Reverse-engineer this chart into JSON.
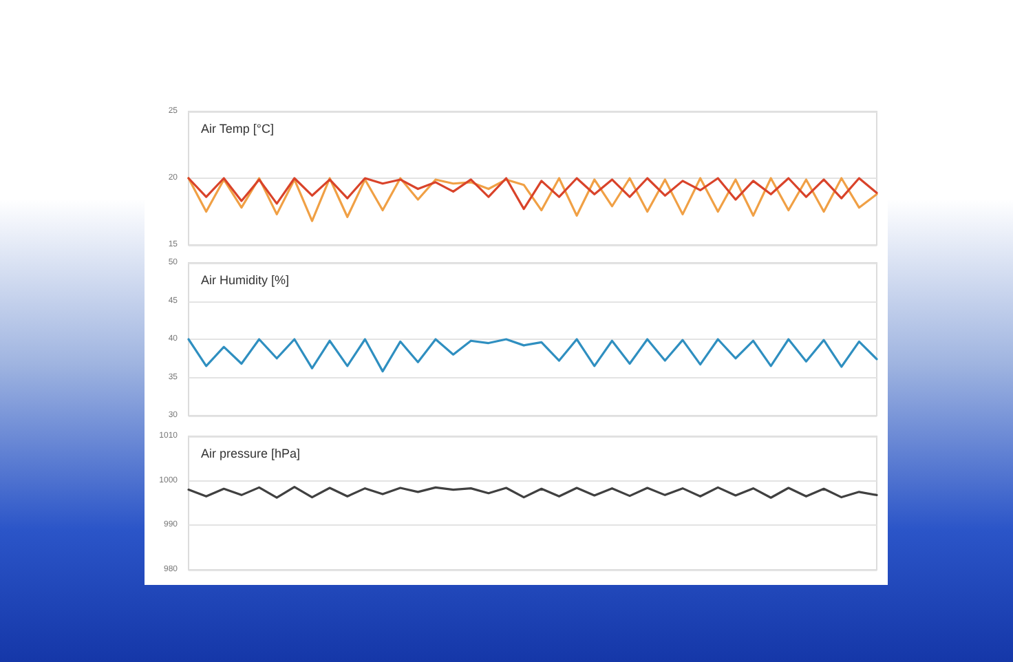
{
  "chart_data": [
    {
      "type": "line",
      "title": "Air Temp [°C]",
      "categories": [
        null,
        null,
        null,
        null,
        null,
        null,
        null,
        null,
        null,
        null,
        null,
        null,
        null,
        null,
        null,
        null,
        null,
        null,
        null,
        null,
        null,
        null,
        null,
        null,
        null,
        null,
        null,
        null,
        null,
        null,
        null,
        null,
        null,
        null,
        null,
        null,
        null,
        null,
        null,
        null
      ],
      "series": [
        {
          "color": "#f0a045",
          "values": [
            20,
            17.5,
            19.9,
            17.8,
            20,
            17.3,
            19.9,
            16.8,
            20,
            17.1,
            19.9,
            17.6,
            20,
            18.4,
            19.9,
            19.6,
            19.7,
            19.2,
            19.9,
            19.5,
            17.6,
            20,
            17.2,
            19.9,
            17.9,
            20,
            17.5,
            19.9,
            17.3,
            20,
            17.5,
            19.9,
            17.2,
            20,
            17.6,
            19.9,
            17.5,
            20,
            17.8,
            18.8
          ]
        },
        {
          "color": "#d9432a",
          "values": [
            20,
            18.6,
            20,
            18.3,
            19.9,
            18.1,
            20,
            18.7,
            19.9,
            18.5,
            20,
            19.6,
            19.9,
            19.2,
            19.7,
            19.0,
            19.9,
            18.6,
            20,
            17.7,
            19.8,
            18.6,
            20,
            18.8,
            19.9,
            18.6,
            20,
            18.7,
            19.8,
            19.1,
            20,
            18.4,
            19.8,
            18.8,
            20,
            18.6,
            19.9,
            18.5,
            20,
            18.9
          ]
        }
      ],
      "ylim": [
        15,
        25
      ],
      "yticks": [
        15,
        20,
        25
      ],
      "grid": "y",
      "marker": "none",
      "line_style": "solid"
    },
    {
      "type": "line",
      "title": "Air Humidity [%]",
      "categories": [
        null,
        null,
        null,
        null,
        null,
        null,
        null,
        null,
        null,
        null,
        null,
        null,
        null,
        null,
        null,
        null,
        null,
        null,
        null,
        null,
        null,
        null,
        null,
        null,
        null,
        null,
        null,
        null,
        null,
        null,
        null,
        null,
        null,
        null,
        null,
        null,
        null,
        null,
        null,
        null
      ],
      "series": [
        {
          "color": "#2f8fc0",
          "values": [
            40,
            36.5,
            39,
            36.8,
            40,
            37.5,
            40,
            36.2,
            39.8,
            36.5,
            40,
            35.8,
            39.7,
            37,
            40,
            38,
            39.8,
            39.5,
            40,
            39.2,
            39.6,
            37.2,
            40,
            36.5,
            39.8,
            36.8,
            40,
            37.2,
            39.9,
            36.7,
            40,
            37.5,
            39.8,
            36.5,
            40,
            37.1,
            39.9,
            36.4,
            39.7,
            37.4
          ]
        }
      ],
      "ylim": [
        30,
        50
      ],
      "yticks": [
        30,
        35,
        40,
        45,
        50
      ],
      "grid": "y",
      "marker": "none",
      "line_style": "solid"
    },
    {
      "type": "line",
      "title": "Air pressure [hPa]",
      "categories": [
        null,
        null,
        null,
        null,
        null,
        null,
        null,
        null,
        null,
        null,
        null,
        null,
        null,
        null,
        null,
        null,
        null,
        null,
        null,
        null,
        null,
        null,
        null,
        null,
        null,
        null,
        null,
        null,
        null,
        null,
        null,
        null,
        null,
        null,
        null,
        null,
        null,
        null,
        null,
        null
      ],
      "series": [
        {
          "color": "#404040",
          "values": [
            998,
            996.5,
            998.2,
            996.8,
            998.5,
            996.2,
            998.6,
            996.3,
            998.4,
            996.5,
            998.3,
            997,
            998.4,
            997.5,
            998.5,
            998,
            998.3,
            997.2,
            998.4,
            996.3,
            998.2,
            996.5,
            998.4,
            996.7,
            998.3,
            996.6,
            998.4,
            996.8,
            998.3,
            996.5,
            998.5,
            996.7,
            998.3,
            996.2,
            998.4,
            996.5,
            998.2,
            996.3,
            997.5,
            996.8
          ]
        }
      ],
      "ylim": [
        980,
        1010
      ],
      "yticks": [
        980,
        990,
        1000,
        1010
      ],
      "grid": "y",
      "marker": "none",
      "line_style": "solid"
    }
  ]
}
